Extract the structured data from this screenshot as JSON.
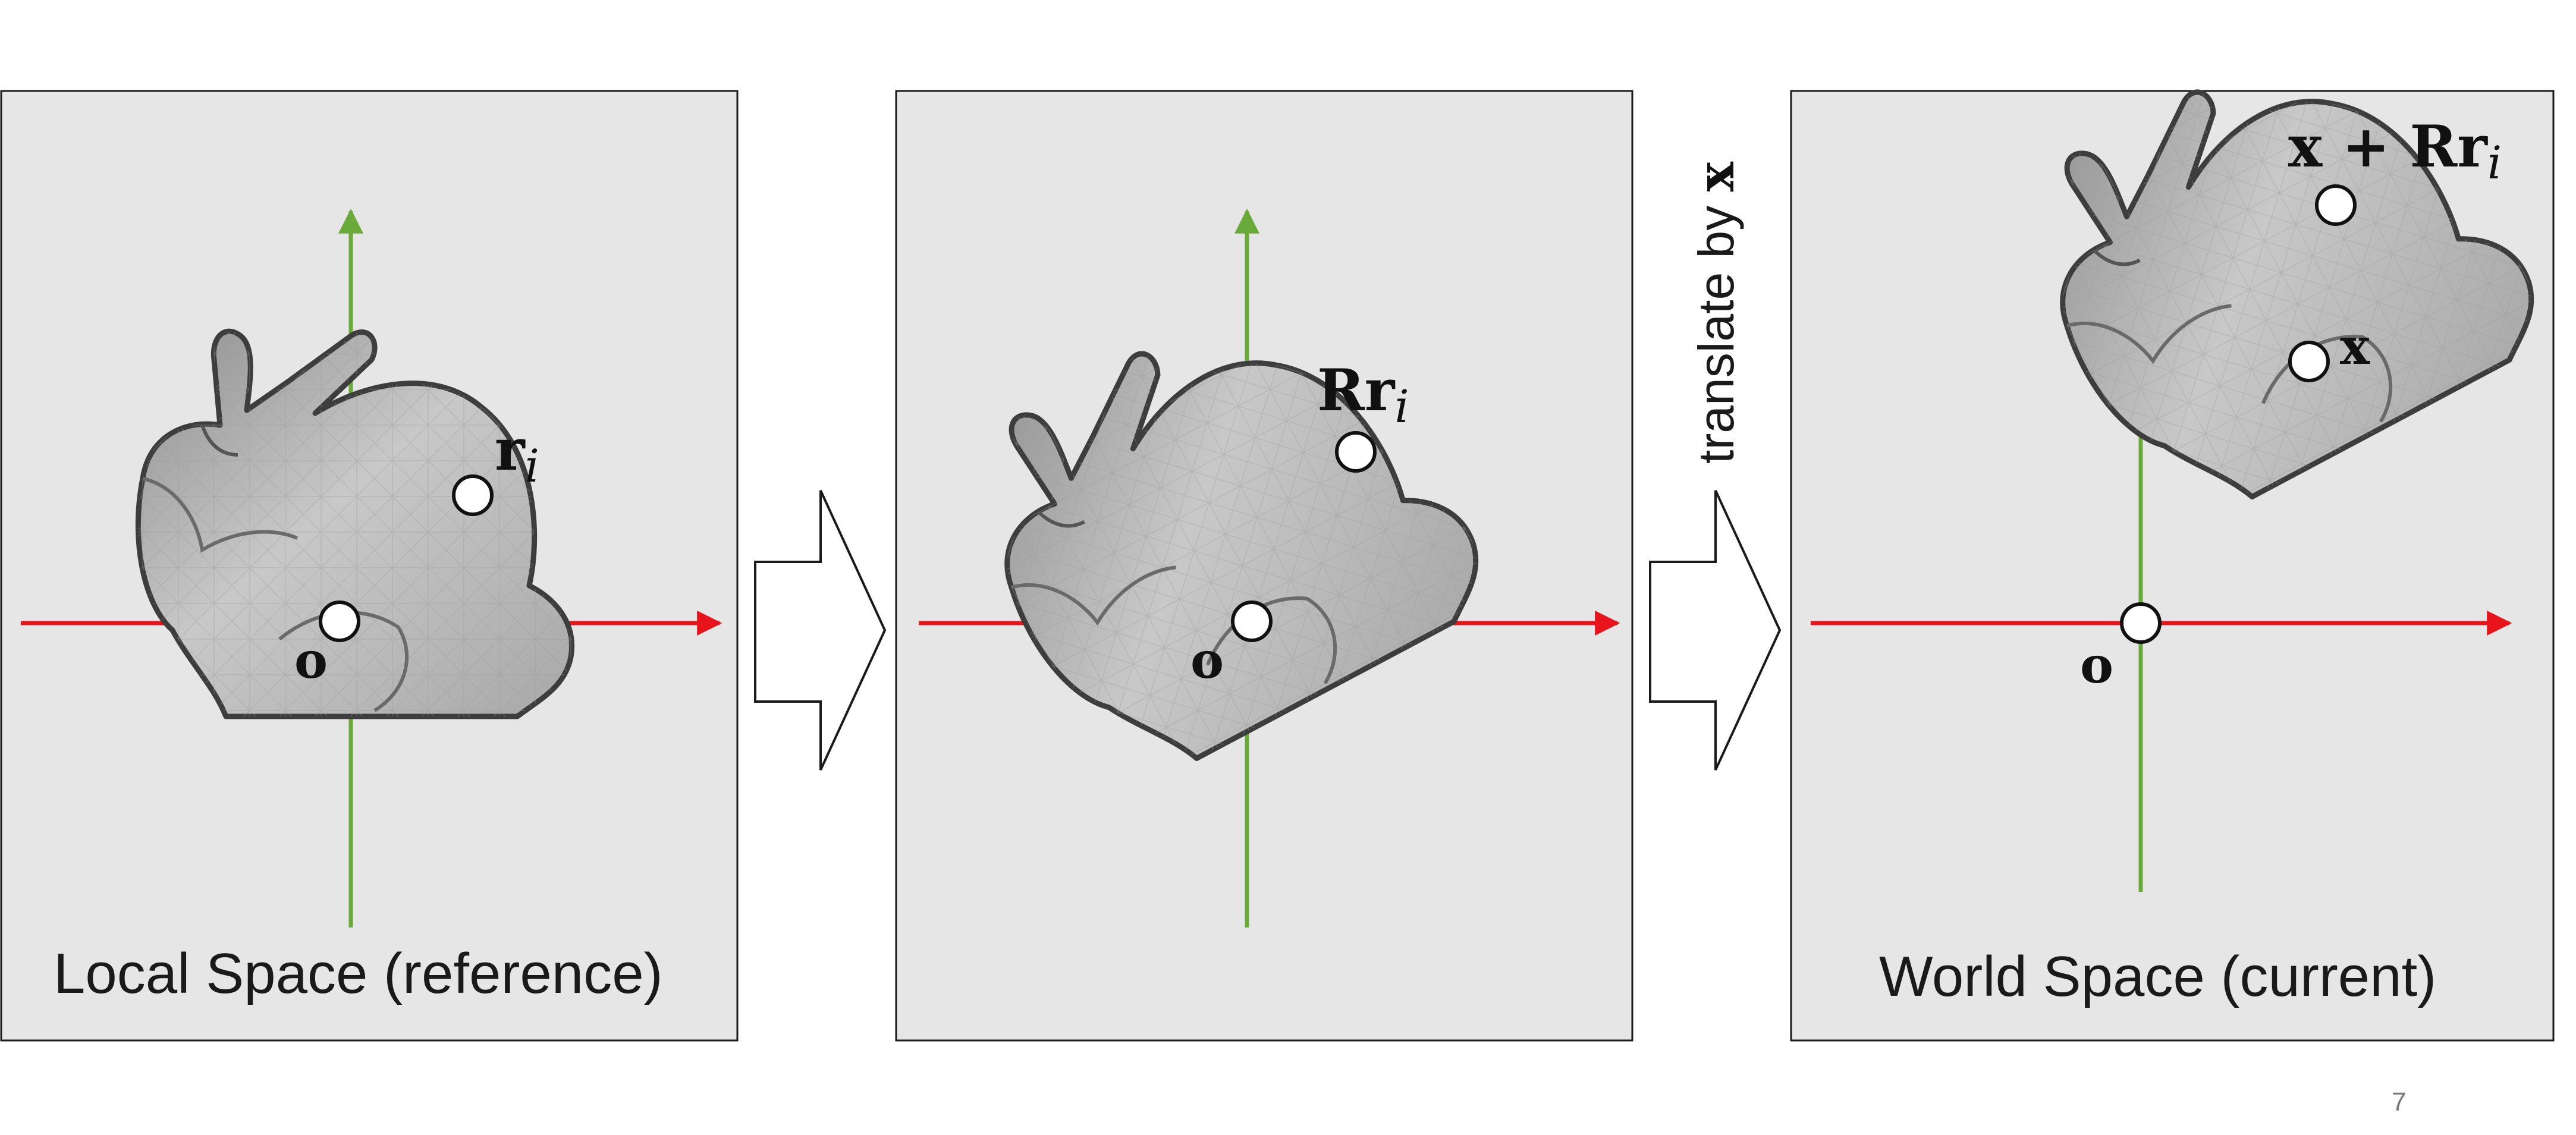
{
  "panels": [
    {
      "caption": "Local Space (reference)",
      "origin_label": "o",
      "point_label": "r",
      "point_sub": "i"
    },
    {
      "caption": "",
      "origin_label": "o",
      "point_label": "Rr",
      "point_sub": "i"
    },
    {
      "caption": "World Space (current)",
      "origin_label": "o",
      "point_label": "x + Rr",
      "point_sub": "i",
      "center_label": "x"
    }
  ],
  "translate_label": "translate by ",
  "translate_var": "x",
  "page_number": "7",
  "colors": {
    "panel_bg": "#e6e6e6",
    "x_axis": "#e8141c",
    "y_axis": "#6aaa3a",
    "bunny_fill": "#b9b9b9",
    "bunny_stroke": "#3d3d3d"
  }
}
